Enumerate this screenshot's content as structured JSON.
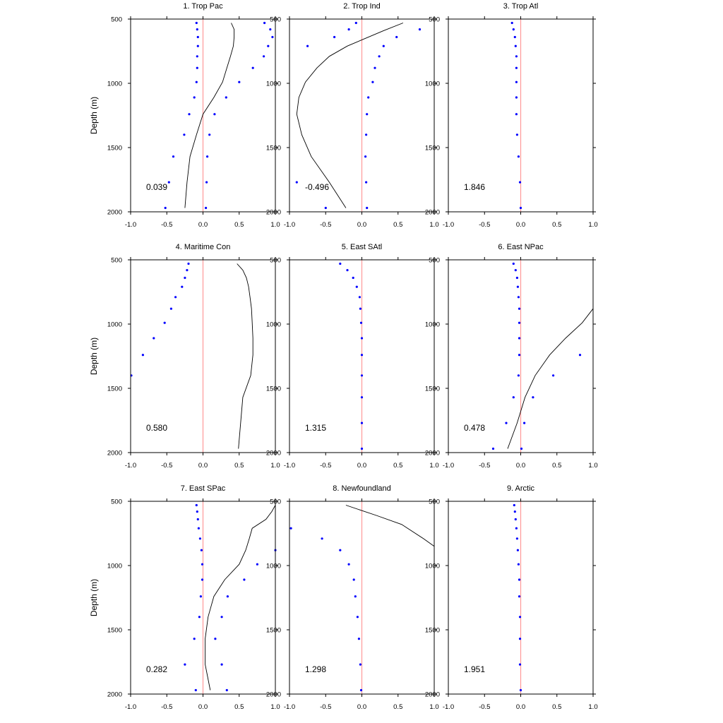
{
  "chart_data": {
    "type": "scatter",
    "layout": "3x3 panel grid",
    "ylabel": "Depth (m)",
    "ylim": [
      500,
      2000
    ],
    "y_inverted": true,
    "xlim": [
      -1.0,
      1.0
    ],
    "xticks": [
      "-1.0",
      "-0.5",
      "0.0",
      "0.5",
      "1.0"
    ],
    "yticks": [
      "500",
      "1000",
      "1500",
      "2000"
    ],
    "reference_line": {
      "x": 0.0,
      "color": "#ff9999"
    },
    "dot_color": "#0000ff",
    "curve_color": "#000000",
    "panels": [
      {
        "title": "1. Trop Pac",
        "stat": "0.039",
        "dots_a": [
          [
            -0.09,
            530
          ],
          [
            -0.08,
            580
          ],
          [
            -0.07,
            640
          ],
          [
            -0.07,
            710
          ],
          [
            -0.08,
            790
          ],
          [
            -0.08,
            880
          ],
          [
            -0.09,
            990
          ],
          [
            -0.12,
            1110
          ],
          [
            -0.19,
            1240
          ],
          [
            -0.26,
            1400
          ],
          [
            -0.41,
            1570
          ],
          [
            -0.47,
            1770
          ],
          [
            -0.52,
            1970
          ]
        ],
        "dots_b": [
          [
            0.85,
            530
          ],
          [
            0.93,
            580
          ],
          [
            0.96,
            640
          ],
          [
            0.9,
            710
          ],
          [
            0.84,
            790
          ],
          [
            0.69,
            880
          ],
          [
            0.5,
            990
          ],
          [
            0.32,
            1110
          ],
          [
            0.16,
            1240
          ],
          [
            0.09,
            1400
          ],
          [
            0.06,
            1570
          ],
          [
            0.05,
            1770
          ],
          [
            0.04,
            1970
          ]
        ],
        "curve": [
          [
            0.39,
            530
          ],
          [
            0.43,
            580
          ],
          [
            0.43,
            640
          ],
          [
            0.42,
            710
          ],
          [
            0.38,
            790
          ],
          [
            0.33,
            880
          ],
          [
            0.27,
            990
          ],
          [
            0.15,
            1110
          ],
          [
            0.0,
            1240
          ],
          [
            -0.09,
            1400
          ],
          [
            -0.18,
            1570
          ],
          [
            -0.22,
            1770
          ],
          [
            -0.25,
            1970
          ]
        ]
      },
      {
        "title": "2. Trop Ind",
        "stat": "-0.496",
        "dots_a": [
          [
            -0.08,
            530
          ],
          [
            -0.18,
            580
          ],
          [
            -0.38,
            640
          ],
          [
            -0.75,
            710
          ]
        ],
        "dots_b": [
          [
            0.8,
            580
          ],
          [
            0.48,
            640
          ],
          [
            0.3,
            710
          ],
          [
            0.24,
            790
          ],
          [
            0.18,
            880
          ],
          [
            0.15,
            990
          ],
          [
            0.09,
            1110
          ],
          [
            0.07,
            1240
          ],
          [
            0.06,
            1400
          ],
          [
            0.05,
            1570
          ],
          [
            0.06,
            1770
          ],
          [
            0.07,
            1970
          ],
          [
            -0.9,
            1770
          ],
          [
            -0.5,
            1970
          ]
        ],
        "curve": [
          [
            0.57,
            530
          ],
          [
            0.3,
            590
          ],
          [
            0.05,
            650
          ],
          [
            -0.2,
            710
          ],
          [
            -0.45,
            790
          ],
          [
            -0.62,
            880
          ],
          [
            -0.78,
            990
          ],
          [
            -0.87,
            1110
          ],
          [
            -0.9,
            1240
          ],
          [
            -0.83,
            1400
          ],
          [
            -0.7,
            1570
          ],
          [
            -0.45,
            1770
          ],
          [
            -0.22,
            1970
          ]
        ]
      },
      {
        "title": "3. Trop Atl",
        "stat": "1.846",
        "dots_a": [
          [
            -0.12,
            530
          ],
          [
            -0.1,
            580
          ],
          [
            -0.08,
            640
          ],
          [
            -0.07,
            710
          ],
          [
            -0.06,
            790
          ],
          [
            -0.06,
            880
          ],
          [
            -0.06,
            990
          ],
          [
            -0.06,
            1110
          ],
          [
            -0.06,
            1240
          ],
          [
            -0.05,
            1400
          ],
          [
            -0.03,
            1570
          ],
          [
            -0.01,
            1770
          ],
          [
            0.0,
            1970
          ]
        ],
        "dots_b": [],
        "curve": []
      },
      {
        "title": "4. Maritime Con",
        "stat": "0.580",
        "dots_a": [
          [
            -0.2,
            530
          ],
          [
            -0.22,
            580
          ],
          [
            -0.25,
            640
          ],
          [
            -0.29,
            710
          ],
          [
            -0.38,
            790
          ],
          [
            -0.44,
            880
          ],
          [
            -0.53,
            990
          ],
          [
            -0.68,
            1110
          ],
          [
            -0.83,
            1240
          ],
          [
            -0.99,
            1400
          ]
        ],
        "dots_b": [],
        "curve": [
          [
            0.47,
            530
          ],
          [
            0.55,
            580
          ],
          [
            0.6,
            640
          ],
          [
            0.63,
            710
          ],
          [
            0.65,
            790
          ],
          [
            0.67,
            880
          ],
          [
            0.68,
            990
          ],
          [
            0.69,
            1110
          ],
          [
            0.69,
            1240
          ],
          [
            0.66,
            1400
          ],
          [
            0.55,
            1570
          ],
          [
            0.52,
            1770
          ],
          [
            0.49,
            1970
          ]
        ]
      },
      {
        "title": "5. East SAtl",
        "stat": "1.315",
        "dots_a": [
          [
            -0.3,
            530
          ],
          [
            -0.2,
            580
          ],
          [
            -0.12,
            640
          ],
          [
            -0.07,
            710
          ],
          [
            -0.03,
            790
          ],
          [
            -0.02,
            880
          ],
          [
            -0.01,
            990
          ],
          [
            0.0,
            1110
          ],
          [
            0.0,
            1240
          ],
          [
            0.0,
            1400
          ],
          [
            0.0,
            1570
          ],
          [
            0.0,
            1770
          ],
          [
            0.0,
            1970
          ]
        ],
        "dots_b": [],
        "curve": []
      },
      {
        "title": "6. East NPac",
        "stat": "0.478",
        "dots_a": [
          [
            -0.1,
            530
          ],
          [
            -0.07,
            580
          ],
          [
            -0.05,
            640
          ],
          [
            -0.04,
            710
          ],
          [
            -0.03,
            790
          ],
          [
            -0.02,
            880
          ],
          [
            -0.02,
            990
          ],
          [
            -0.02,
            1110
          ],
          [
            -0.02,
            1240
          ],
          [
            -0.03,
            1400
          ],
          [
            -0.1,
            1570
          ],
          [
            -0.2,
            1770
          ],
          [
            -0.38,
            1970
          ]
        ],
        "dots_b": [
          [
            0.82,
            1240
          ],
          [
            0.45,
            1400
          ],
          [
            0.17,
            1570
          ],
          [
            0.05,
            1770
          ],
          [
            0.01,
            1970
          ]
        ],
        "curve": [
          [
            1.0,
            880
          ],
          [
            0.85,
            990
          ],
          [
            0.62,
            1110
          ],
          [
            0.4,
            1240
          ],
          [
            0.2,
            1400
          ],
          [
            0.06,
            1570
          ],
          [
            -0.05,
            1770
          ],
          [
            -0.18,
            1970
          ]
        ]
      },
      {
        "title": "7. East SPac",
        "stat": "0.282",
        "dots_a": [
          [
            -0.09,
            530
          ],
          [
            -0.08,
            580
          ],
          [
            -0.07,
            640
          ],
          [
            -0.06,
            710
          ],
          [
            -0.04,
            790
          ],
          [
            -0.02,
            880
          ],
          [
            -0.01,
            990
          ],
          [
            -0.01,
            1110
          ],
          [
            -0.03,
            1240
          ],
          [
            -0.05,
            1400
          ],
          [
            -0.12,
            1570
          ],
          [
            -0.25,
            1770
          ],
          [
            -0.1,
            1970
          ]
        ],
        "dots_b": [
          [
            1.0,
            880
          ],
          [
            0.75,
            990
          ],
          [
            0.57,
            1110
          ],
          [
            0.34,
            1240
          ],
          [
            0.26,
            1400
          ],
          [
            0.17,
            1570
          ],
          [
            0.26,
            1770
          ],
          [
            0.33,
            1970
          ]
        ],
        "curve": [
          [
            1.0,
            530
          ],
          [
            0.95,
            580
          ],
          [
            0.87,
            640
          ],
          [
            0.68,
            710
          ],
          [
            0.64,
            790
          ],
          [
            0.59,
            880
          ],
          [
            0.5,
            990
          ],
          [
            0.3,
            1110
          ],
          [
            0.15,
            1240
          ],
          [
            0.07,
            1400
          ],
          [
            0.03,
            1570
          ],
          [
            0.03,
            1770
          ],
          [
            0.1,
            1970
          ]
        ]
      },
      {
        "title": "8. Newfoundland",
        "stat": "1.298",
        "dots_a": [
          [
            -0.98,
            710
          ],
          [
            -0.55,
            790
          ],
          [
            -0.3,
            880
          ],
          [
            -0.18,
            990
          ],
          [
            -0.11,
            1110
          ],
          [
            -0.09,
            1240
          ],
          [
            -0.06,
            1400
          ],
          [
            -0.04,
            1570
          ],
          [
            -0.02,
            1770
          ],
          [
            -0.01,
            1970
          ]
        ],
        "dots_b": [],
        "curve": [
          [
            -0.22,
            530
          ],
          [
            0.2,
            610
          ],
          [
            0.55,
            680
          ],
          [
            0.85,
            790
          ],
          [
            1.0,
            850
          ]
        ]
      },
      {
        "title": "9. Arctic",
        "stat": "1.951",
        "dots_a": [
          [
            -0.09,
            530
          ],
          [
            -0.08,
            580
          ],
          [
            -0.07,
            640
          ],
          [
            -0.06,
            710
          ],
          [
            -0.05,
            790
          ],
          [
            -0.04,
            880
          ],
          [
            -0.03,
            990
          ],
          [
            -0.02,
            1110
          ],
          [
            -0.02,
            1240
          ],
          [
            -0.01,
            1400
          ],
          [
            -0.01,
            1570
          ],
          [
            -0.01,
            1770
          ],
          [
            0.0,
            1970
          ]
        ],
        "dots_b": [],
        "curve": []
      }
    ]
  }
}
